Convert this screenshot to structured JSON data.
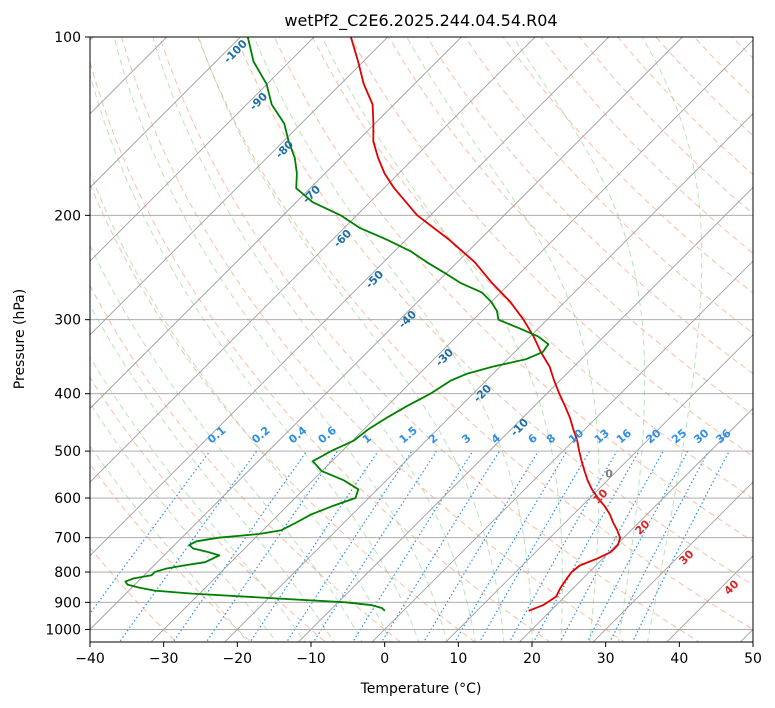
{
  "title": "wetPf2_C2E6.2025.244.04.54.R04",
  "chart_data": {
    "type": "line",
    "title": "wetPf2_C2E6.2025.244.04.54.R04",
    "xlabel": "Temperature (°C)",
    "ylabel": "Pressure (hPa)",
    "xlim": [
      -40,
      50
    ],
    "ylim": [
      1050,
      100
    ],
    "y_scale": "log",
    "skew": "skew-T log-P",
    "grid": true,
    "x_ticks": [
      -40,
      -30,
      -20,
      -10,
      0,
      10,
      20,
      30,
      40,
      50
    ],
    "x_tick_labels": [
      "−40",
      "−30",
      "−20",
      "−10",
      "0",
      "10",
      "20",
      "30",
      "40",
      "50"
    ],
    "y_ticks": [
      100,
      200,
      300,
      400,
      500,
      600,
      700,
      800,
      900,
      1000
    ],
    "y_tick_labels": [
      "100",
      "200",
      "300",
      "400",
      "500",
      "600",
      "700",
      "800",
      "900",
      "1000"
    ],
    "series": [
      {
        "color": "#e00000",
        "pressure": [
          930,
          910,
          880,
          850,
          820,
          800,
          780,
          760,
          740,
          720,
          700,
          680,
          660,
          640,
          620,
          600,
          580,
          560,
          540,
          520,
          500,
          480,
          460,
          440,
          420,
          400,
          380,
          360,
          340,
          320,
          300,
          280,
          260,
          240,
          220,
          200,
          180,
          170,
          160,
          150,
          140,
          130,
          120,
          110,
          100
        ],
        "temperature": [
          17.0,
          18.2,
          18.8,
          18.2,
          17.8,
          17.6,
          17.8,
          19.2,
          20.2,
          20.2,
          19.5,
          18.1,
          16.5,
          15.0,
          13.2,
          11.1,
          9.1,
          7.3,
          5.6,
          3.9,
          2.2,
          0.5,
          -1.5,
          -3.5,
          -5.8,
          -8.3,
          -10.8,
          -13.3,
          -16.5,
          -19.6,
          -23.2,
          -27.4,
          -32.5,
          -37.6,
          -44.1,
          -51.8,
          -58.6,
          -61.9,
          -64.9,
          -67.8,
          -70.2,
          -72.9,
          -76.9,
          -80.7,
          -85.0
        ]
      },
      {
        "color": "#008000",
        "pressure": [
          930,
          920,
          910,
          900,
          885,
          870,
          860,
          850,
          840,
          830,
          820,
          810,
          800,
          790,
          780,
          770,
          760,
          750,
          740,
          730,
          720,
          710,
          700,
          690,
          680,
          660,
          640,
          620,
          600,
          580,
          560,
          540,
          520,
          500,
          480,
          460,
          440,
          420,
          400,
          380,
          370,
          360,
          350,
          340,
          330,
          320,
          310,
          300,
          290,
          280,
          270,
          260,
          250,
          240,
          230,
          220,
          210,
          200,
          190,
          180,
          170,
          160,
          150,
          140,
          130,
          120,
          110,
          100
        ],
        "temperature": [
          -2.5,
          -3.3,
          -5.0,
          -9.0,
          -20.0,
          -31.0,
          -36.5,
          -39.0,
          -41.0,
          -41.7,
          -41.0,
          -39.0,
          -39.0,
          -38.0,
          -36.0,
          -33.5,
          -33.0,
          -32.5,
          -34.5,
          -37.0,
          -38.0,
          -37.5,
          -35.0,
          -30.0,
          -27.5,
          -26.5,
          -25.6,
          -23.9,
          -21.8,
          -22.6,
          -25.8,
          -30.1,
          -32.6,
          -31.5,
          -29.8,
          -29.4,
          -28.5,
          -27.3,
          -25.8,
          -24.8,
          -23.5,
          -21.0,
          -17.5,
          -16.2,
          -16.5,
          -19.0,
          -22.7,
          -26.6,
          -28.0,
          -30.0,
          -32.5,
          -36.8,
          -40.3,
          -44.1,
          -47.8,
          -52.5,
          -57.9,
          -62.2,
          -67.8,
          -71.9,
          -73.8,
          -76.2,
          -79.3,
          -82.3,
          -86.6,
          -90.1,
          -94.9,
          -99.0
        ]
      }
    ],
    "parcel_point": {
      "pressure": 545,
      "temperature": 9.0,
      "label": "0"
    },
    "dry_adiabat_labels": [
      "10",
      "20",
      "30",
      "40"
    ],
    "moist_adiabat_labels": [
      "-100",
      "-90",
      "-80",
      "-70",
      "-60",
      "-50",
      "-40",
      "-30",
      "-20",
      "-10"
    ],
    "mixing_ratio_labels": [
      "0.1",
      "0.2",
      "0.4",
      "0.6",
      "1",
      "1.5",
      "2",
      "3",
      "4",
      "6",
      "8",
      "10",
      "13",
      "16",
      "20",
      "25",
      "30",
      "36"
    ],
    "colors": {
      "temperature": "#e00000",
      "dewpoint": "#008000",
      "isotherm": "#a0a0a0",
      "isobar": "#a0a0a0",
      "dry_adiabat": "#f4a582",
      "moist_adiabat": "#8fce8f",
      "mixing_ratio": "#2f8fe6",
      "dry_adiabat_label": "#d62728",
      "moist_adiabat_label": "#1f6fa8",
      "parcel_point": "#808080"
    }
  }
}
